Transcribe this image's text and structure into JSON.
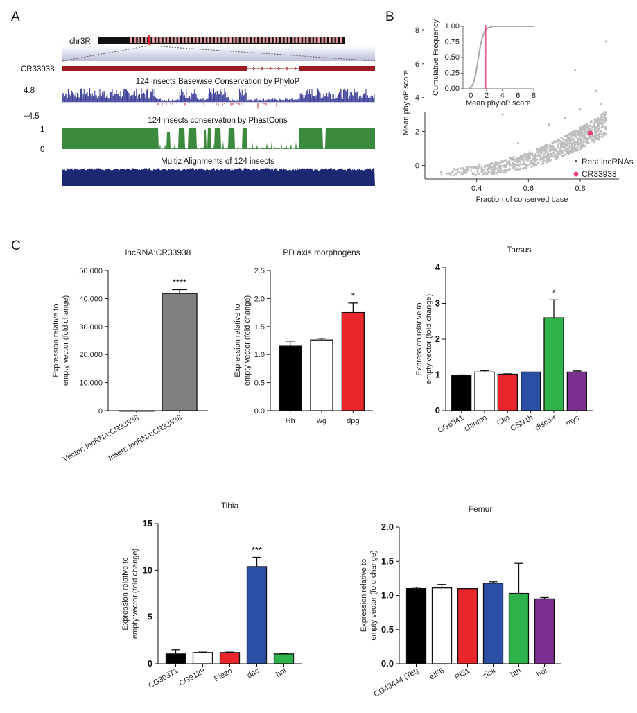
{
  "panel_labels": {
    "a": "A",
    "b": "B",
    "c": "C"
  },
  "panelA": {
    "chrom_label": "chr3R",
    "gene_label": "CR33938",
    "track1_title": "124 insects Basewise Conservation by PhyloP",
    "track1_max": "4.8",
    "track1_min": "−4.5",
    "track2_title": "124 insects conservation by PhastCons",
    "track2_max": "1",
    "track2_min": "0",
    "track3_title": "Multiz Alignments of 124 insects",
    "colors": {
      "gene": "#9b1c20",
      "phylop": "#2f3192",
      "phylop_neg": "#c0272d",
      "phastcons": "#3c8a3d",
      "multiz": "#1d2873"
    }
  },
  "chart_data": [
    {
      "id": "B",
      "type": "scatter",
      "xlabel": "Fraction of conserved base",
      "ylabel": "Mean phyloP score",
      "xlim": [
        0.2,
        0.95
      ],
      "ylim": [
        -0.8,
        8.2
      ],
      "xticks": [
        "0.4",
        "0.6",
        "0.8"
      ],
      "xtick_values": [
        0.4,
        0.6,
        0.8
      ],
      "yticks": [
        "0",
        "2",
        "4",
        "6",
        "8"
      ],
      "ytick_values": [
        0,
        2,
        4,
        6,
        8
      ],
      "series": [
        {
          "name": "Rest lncRNAs",
          "marker": "×",
          "color": "#bdbdbd"
        },
        {
          "name": "CR33938",
          "marker": "●",
          "color": "#e83e74",
          "points": [
            {
              "x": 0.84,
              "y": 1.9
            }
          ]
        }
      ],
      "legend_position": "bottom-right",
      "inset": {
        "type": "line",
        "xlabel": "Mean phyloP score",
        "ylabel": "Cumulative Frequency",
        "xlim": [
          -1,
          8
        ],
        "ylim": [
          0,
          1
        ],
        "xticks": [
          "0",
          "2",
          "4",
          "6",
          "8"
        ],
        "xtick_values": [
          0,
          2,
          4,
          6,
          8
        ],
        "yticks": [
          "0.00",
          "0.25",
          "0.50",
          "0.75",
          "1.00"
        ],
        "ytick_values": [
          0,
          0.25,
          0.5,
          0.75,
          1.0
        ],
        "vline_x": 1.9,
        "x": [
          -0.3,
          0,
          0.3,
          0.6,
          0.9,
          1.2,
          1.5,
          1.8,
          2.1,
          2.5,
          3,
          4,
          5,
          6,
          7,
          8
        ],
        "y": [
          0.0,
          0.02,
          0.08,
          0.22,
          0.45,
          0.68,
          0.84,
          0.93,
          0.97,
          0.99,
          1.0,
          1.0,
          1.0,
          1.0,
          1.0,
          1.0
        ]
      }
    },
    {
      "id": "C1",
      "type": "bar",
      "title": "lncRNA:CR33938",
      "ylabel_lines": [
        "Expression relative to",
        "empty vector (fold change)"
      ],
      "categories": [
        "Vector: lncRNA:CR33938",
        "Insert: lncRNA:CR33938"
      ],
      "values": [
        1,
        41800
      ],
      "errors": [
        0,
        1400
      ],
      "colors": [
        "#ffffff",
        "#808080"
      ],
      "significance": [
        "",
        "****"
      ],
      "ylim": [
        0,
        50000
      ],
      "yticks": [
        "0",
        "10,000",
        "20,000",
        "30,000",
        "40,000",
        "50,000"
      ],
      "ytick_values": [
        0,
        10000,
        20000,
        30000,
        40000,
        50000
      ]
    },
    {
      "id": "C2",
      "type": "bar",
      "title": "PD axis morphogens",
      "ylabel_lines": [
        "Expression relative to",
        "empty vector (fold change)"
      ],
      "categories": [
        "Hh",
        "wg",
        "dpg"
      ],
      "values": [
        1.15,
        1.26,
        1.75
      ],
      "errors": [
        0.09,
        0.03,
        0.17
      ],
      "colors": [
        "#000000",
        "#ffffff",
        "#e8262b"
      ],
      "significance": [
        "",
        "",
        "*"
      ],
      "ylim": [
        0,
        2.5
      ],
      "yticks": [
        "0.0",
        "0.5",
        "1.0",
        "1.5",
        "2.0",
        "2.5"
      ],
      "ytick_values": [
        0,
        0.5,
        1.0,
        1.5,
        2.0,
        2.5
      ]
    },
    {
      "id": "C3",
      "type": "bar",
      "title": "Tarsus",
      "ylabel_lines": [
        "Expression relative to",
        "empty vector (fold change)"
      ],
      "categories": [
        "CG6841",
        "chinmo",
        "Cka",
        "CSN1b",
        "disco-r",
        "mys"
      ],
      "values": [
        0.99,
        1.08,
        1.02,
        1.08,
        2.6,
        1.08
      ],
      "errors": [
        0.01,
        0.04,
        0.01,
        0.0,
        0.5,
        0.03
      ],
      "colors": [
        "#000000",
        "#ffffff",
        "#e8262b",
        "#2a4fa5",
        "#2fb24a",
        "#7b2f8e"
      ],
      "significance": [
        "",
        "",
        "",
        "",
        "*",
        ""
      ],
      "ylim": [
        0,
        4
      ],
      "yticks": [
        "0",
        "1",
        "2",
        "3",
        "4"
      ],
      "ytick_values": [
        0,
        1,
        2,
        3,
        4
      ]
    },
    {
      "id": "C4",
      "type": "bar",
      "title": "Tibia",
      "ylabel_lines": [
        "Expression relative to",
        "empty vector (fold change)"
      ],
      "categories": [
        "CG30371",
        "CG9129",
        "Piezo",
        "dac",
        "bnl"
      ],
      "values": [
        1.05,
        1.2,
        1.2,
        10.4,
        1.05
      ],
      "errors": [
        0.45,
        0.05,
        0.05,
        1.0,
        0.05
      ],
      "colors": [
        "#000000",
        "#ffffff",
        "#e8262b",
        "#2a4fa5",
        "#2fb24a"
      ],
      "significance": [
        "",
        "",
        "",
        "***",
        ""
      ],
      "ylim": [
        0,
        15
      ],
      "yticks": [
        "0",
        "5",
        "10",
        "15"
      ],
      "ytick_values": [
        0,
        5,
        10,
        15
      ]
    },
    {
      "id": "C5",
      "type": "bar",
      "title": "Femur",
      "ylabel_lines": [
        "Expression relative to",
        "empty vector (fold change)"
      ],
      "categories": [
        "CG43444 (Tet)",
        "eIF6",
        "PI31",
        "sick",
        "hth",
        "boi"
      ],
      "values": [
        1.1,
        1.11,
        1.1,
        1.18,
        1.03,
        0.95
      ],
      "errors": [
        0.02,
        0.05,
        0.0,
        0.02,
        0.44,
        0.02
      ],
      "colors": [
        "#000000",
        "#ffffff",
        "#e8262b",
        "#2a4fa5",
        "#2fb24a",
        "#7b2f8e"
      ],
      "significance": [
        "",
        "",
        "",
        "",
        "",
        ""
      ],
      "ylim": [
        0,
        2.0
      ],
      "yticks": [
        "0.0",
        "0.5",
        "1.0",
        "1.5",
        "2.0"
      ],
      "ytick_values": [
        0,
        0.5,
        1.0,
        1.5,
        2.0
      ]
    }
  ]
}
